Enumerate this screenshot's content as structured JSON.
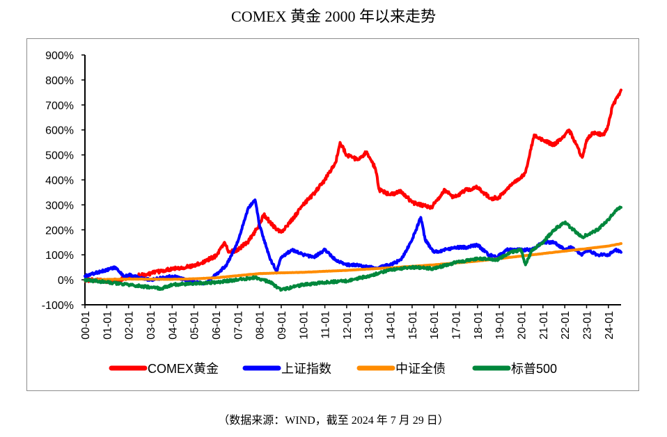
{
  "title": "COMEX 黄金 2000 年以来走势",
  "source_note": "（数据来源：WIND，截至 2024 年 7 月 29 日）",
  "chart_data": {
    "type": "line",
    "title": "COMEX 黄金 2000 年以来走势",
    "xlabel": "",
    "ylabel": "",
    "ylim": [
      -100,
      900
    ],
    "y_unit": "%",
    "y_ticks": [
      "900%",
      "800%",
      "700%",
      "600%",
      "500%",
      "400%",
      "300%",
      "200%",
      "100%",
      "0%",
      "-100%"
    ],
    "y_tick_values": [
      900,
      800,
      700,
      600,
      500,
      400,
      300,
      200,
      100,
      0,
      -100
    ],
    "xlim": [
      2000,
      2024.58
    ],
    "x_ticks": [
      "00-01",
      "01-01",
      "02-01",
      "03-01",
      "04-01",
      "05-01",
      "06-01",
      "07-01",
      "08-01",
      "09-01",
      "10-01",
      "11-01",
      "12-01",
      "13-01",
      "14-01",
      "15-01",
      "16-01",
      "17-01",
      "18-01",
      "19-01",
      "20-01",
      "21-01",
      "22-01",
      "23-01",
      "24-01"
    ],
    "x_tick_values": [
      2000,
      2001,
      2002,
      2003,
      2004,
      2005,
      2006,
      2007,
      2008,
      2009,
      2010,
      2011,
      2012,
      2013,
      2014,
      2015,
      2016,
      2017,
      2018,
      2019,
      2020,
      2021,
      2022,
      2023,
      2024
    ],
    "grid": false,
    "legend_position": "bottom",
    "series": [
      {
        "name": "COMEX黄金",
        "color": "#ff0000",
        "x": [
          2000,
          2001,
          2001.5,
          2002,
          2003,
          2004,
          2005,
          2006,
          2006.4,
          2006.6,
          2007,
          2007.5,
          2008,
          2008.2,
          2008.8,
          2009,
          2009.5,
          2010,
          2010.5,
          2011,
          2011.5,
          2011.7,
          2012,
          2012.5,
          2012.9,
          2013.3,
          2013.5,
          2014,
          2014.5,
          2015,
          2015.9,
          2016.5,
          2016.9,
          2017.5,
          2018,
          2018.6,
          2019,
          2019.5,
          2019.9,
          2020.2,
          2020.6,
          2021,
          2021.5,
          2022,
          2022.2,
          2022.8,
          2023,
          2023.3,
          2023.8,
          2024,
          2024.2,
          2024.5,
          2024.58
        ],
        "y": [
          0,
          -5,
          -2,
          10,
          25,
          45,
          55,
          95,
          150,
          110,
          120,
          155,
          220,
          260,
          200,
          190,
          240,
          300,
          345,
          400,
          470,
          550,
          500,
          480,
          510,
          450,
          360,
          340,
          355,
          310,
          290,
          360,
          330,
          360,
          370,
          325,
          330,
          380,
          400,
          430,
          580,
          560,
          540,
          580,
          600,
          490,
          560,
          590,
          580,
          620,
          700,
          740,
          760
        ]
      },
      {
        "name": "上证指数",
        "color": "#0000ff",
        "x": [
          2000,
          2001,
          2001.4,
          2001.8,
          2002,
          2003,
          2004,
          2005,
          2005.5,
          2006,
          2006.5,
          2007,
          2007.5,
          2007.8,
          2008,
          2008.5,
          2008.8,
          2009,
          2009.5,
          2010,
          2010.5,
          2011,
          2011.5,
          2012,
          2012.5,
          2013,
          2013.5,
          2014,
          2014.5,
          2015,
          2015.4,
          2015.6,
          2016,
          2016.5,
          2017,
          2017.5,
          2018,
          2018.5,
          2018.9,
          2019.3,
          2019.9,
          2020.5,
          2021,
          2021.5,
          2022,
          2022.3,
          2022.8,
          2023,
          2023.5,
          2024,
          2024.3,
          2024.58
        ],
        "y": [
          15,
          40,
          50,
          10,
          20,
          0,
          15,
          -10,
          -15,
          20,
          60,
          150,
          290,
          320,
          220,
          80,
          35,
          90,
          120,
          100,
          90,
          120,
          80,
          60,
          60,
          50,
          50,
          60,
          80,
          160,
          250,
          160,
          110,
          120,
          130,
          130,
          140,
          100,
          90,
          120,
          120,
          120,
          150,
          150,
          120,
          130,
          100,
          120,
          100,
          100,
          120,
          110
        ]
      },
      {
        "name": "中证全债",
        "color": "#ff8c00",
        "x": [
          2000,
          2002,
          2004,
          2005,
          2006,
          2008,
          2009,
          2010,
          2012,
          2014,
          2016,
          2018,
          2020,
          2022,
          2024,
          2024.58
        ],
        "y": [
          0,
          3,
          2,
          4,
          8,
          25,
          28,
          30,
          38,
          48,
          60,
          75,
          95,
          115,
          135,
          145
        ]
      },
      {
        "name": "标普500",
        "color": "#00873c",
        "x": [
          2000,
          2001,
          2002,
          2003,
          2003.5,
          2004,
          2005,
          2006,
          2007,
          2007.8,
          2008.5,
          2009,
          2009.5,
          2010,
          2011,
          2012,
          2013,
          2014,
          2015,
          2016,
          2017,
          2018,
          2018.9,
          2019.5,
          2020,
          2020.2,
          2020.5,
          2021,
          2021.5,
          2022,
          2022.8,
          2023,
          2023.5,
          2024,
          2024.3,
          2024.58
        ],
        "y": [
          0,
          -10,
          -20,
          -30,
          -35,
          -20,
          -15,
          -10,
          0,
          10,
          -10,
          -40,
          -30,
          -20,
          -10,
          -5,
          15,
          40,
          50,
          45,
          70,
          85,
          80,
          110,
          120,
          60,
          120,
          150,
          200,
          230,
          170,
          180,
          200,
          240,
          275,
          290
        ]
      }
    ]
  }
}
